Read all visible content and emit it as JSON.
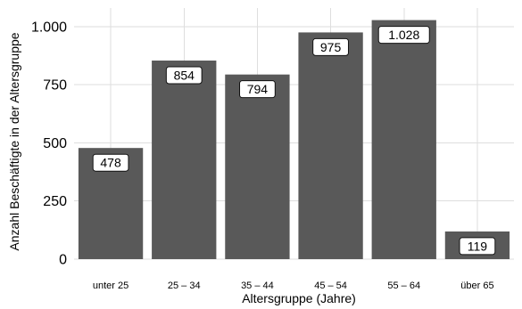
{
  "chart_data": {
    "type": "bar",
    "categories": [
      "unter 25",
      "25 – 34",
      "35 – 44",
      "45 – 54",
      "55 – 64",
      "über 65"
    ],
    "values": [
      478,
      854,
      794,
      975,
      1028,
      119
    ],
    "value_labels": [
      "478",
      "854",
      "794",
      "975",
      "1.028",
      "119"
    ],
    "xlabel": "Altersgruppe (Jahre)",
    "ylabel": "Anzahl Beschäftigte in der Altersgruppe",
    "ylim": [
      0,
      1080
    ],
    "y_ticks": [
      0,
      250,
      500,
      750,
      1000
    ],
    "y_tick_labels": [
      "0",
      "250",
      "500",
      "750",
      "1.000"
    ],
    "grid": true,
    "legend": "none",
    "colors": {
      "bar": "#595959",
      "grid": "#dedede",
      "label_fill": "#ffffff",
      "label_border": "#111111",
      "text": "#000000"
    }
  }
}
